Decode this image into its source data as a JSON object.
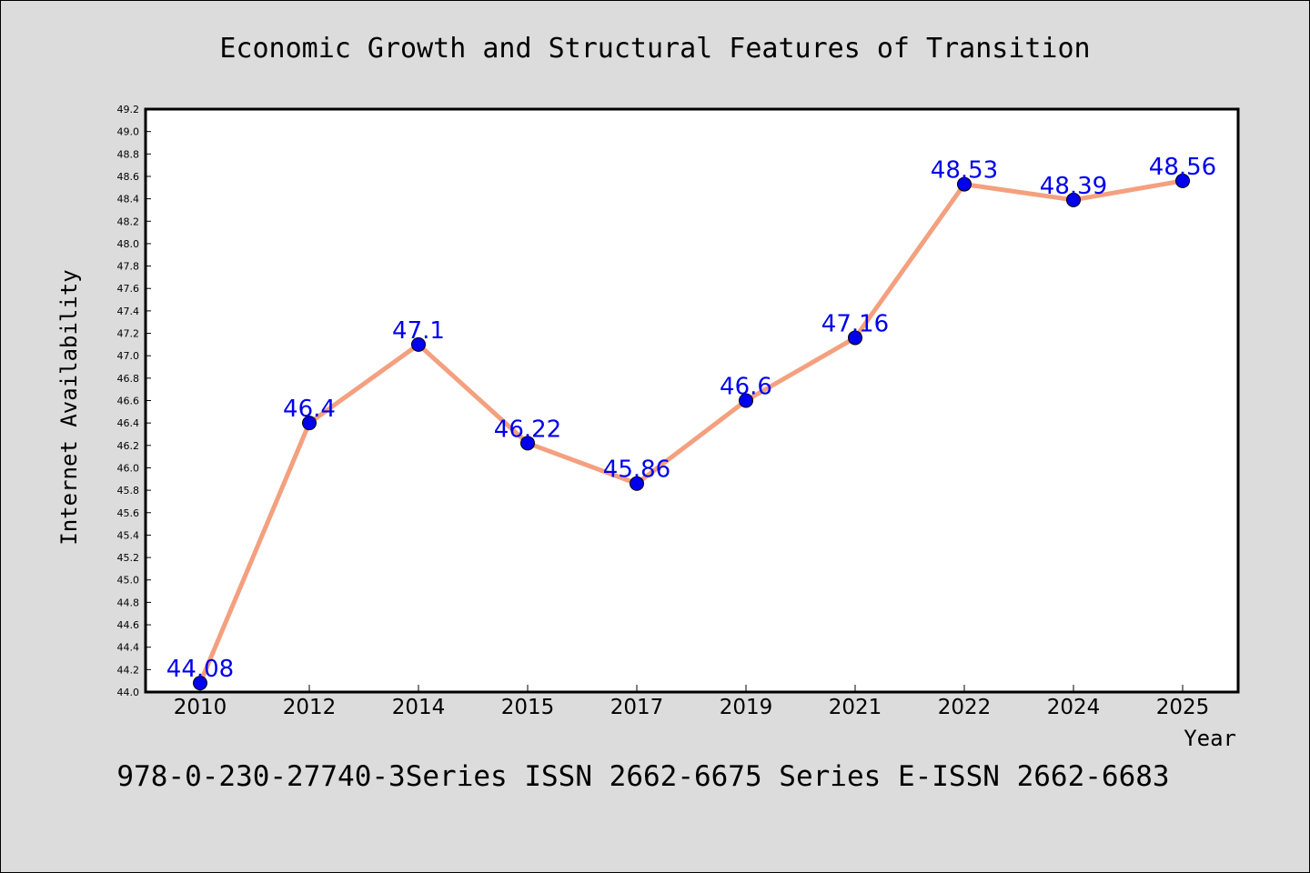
{
  "chart_data": {
    "type": "line",
    "title": "Economic Growth and Structural Features of Transition",
    "xlabel": "Year",
    "ylabel": "Internet Availability",
    "categories": [
      "2010",
      "2012",
      "2014",
      "2015",
      "2017",
      "2019",
      "2021",
      "2022",
      "2024",
      "2025"
    ],
    "values": [
      44.08,
      46.4,
      47.1,
      46.22,
      45.86,
      46.6,
      47.16,
      48.53,
      48.39,
      48.56
    ],
    "data_labels": [
      "44.08",
      "46.4",
      "47.1",
      "46.22",
      "45.86",
      "46.6",
      "47.16",
      "48.53",
      "48.39",
      "48.56"
    ],
    "ylim": [
      44.0,
      49.2
    ],
    "ytick_step": 0.2,
    "grid": false,
    "legend": "none",
    "line_color": "#f4a07f",
    "marker_color": "#0000ee",
    "label_color": "#0000ee",
    "plot_background": "#ffffff",
    "page_background": "#dcdcdc"
  },
  "footer": "978-0-230-27740-3Series ISSN 2662-6675 Series E-ISSN 2662-6683"
}
